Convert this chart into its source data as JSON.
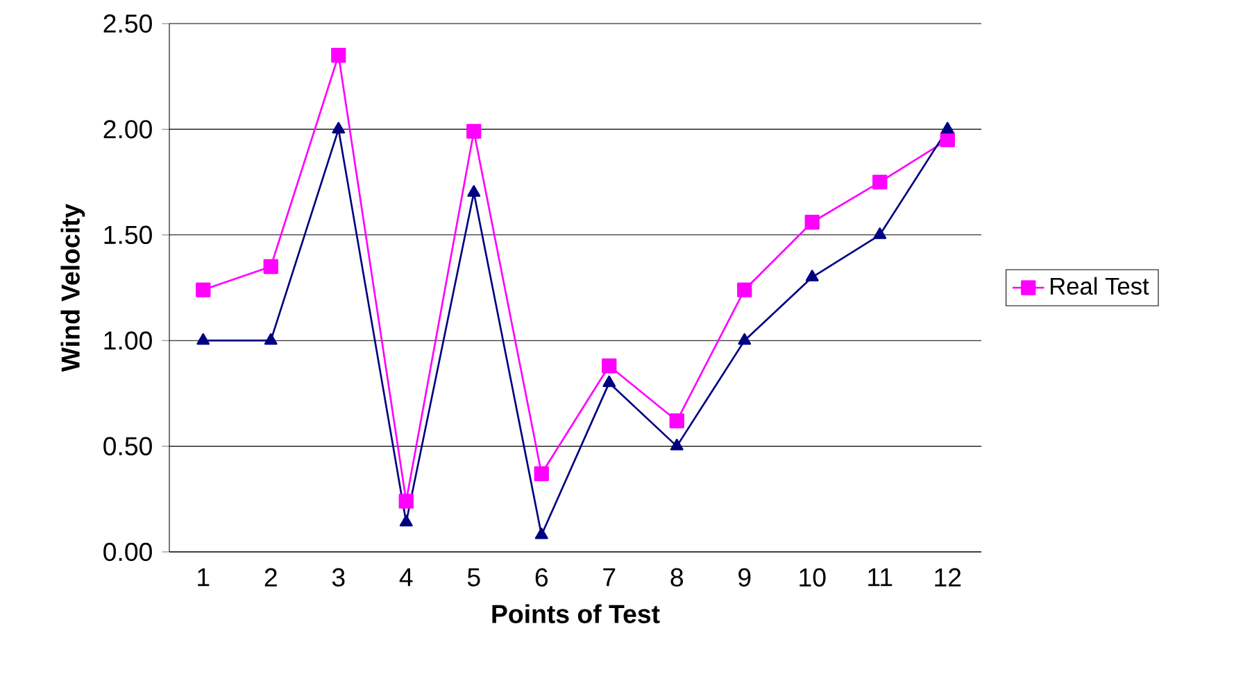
{
  "chart_data": {
    "type": "line",
    "xlabel": "Points of Test",
    "ylabel": "Wind Velocity",
    "categories": [
      "1",
      "2",
      "3",
      "4",
      "5",
      "6",
      "7",
      "8",
      "9",
      "10",
      "11",
      "12"
    ],
    "series": [
      {
        "name": "Real Test",
        "color": "#ff00ff",
        "marker": "square",
        "values": [
          1.24,
          1.35,
          2.35,
          0.24,
          1.99,
          0.37,
          0.88,
          0.62,
          1.24,
          1.56,
          1.75,
          1.95
        ]
      },
      {
        "color": "#000080",
        "marker": "triangle",
        "values": [
          1.0,
          1.0,
          2.0,
          0.14,
          1.7,
          0.08,
          0.8,
          0.5,
          1.0,
          1.3,
          1.5,
          2.0
        ]
      }
    ],
    "ylim": [
      0,
      2.5
    ],
    "yticks": [
      {
        "value": 0,
        "label": "0.00"
      },
      {
        "value": 0.5,
        "label": "0.50"
      },
      {
        "value": 1,
        "label": "1.00"
      },
      {
        "value": 1.5,
        "label": "1.50"
      },
      {
        "value": 2,
        "label": "2.00"
      },
      {
        "value": 2.5,
        "label": "2.50"
      }
    ],
    "grid": "y",
    "legend": "right",
    "line_style": "solid"
  }
}
